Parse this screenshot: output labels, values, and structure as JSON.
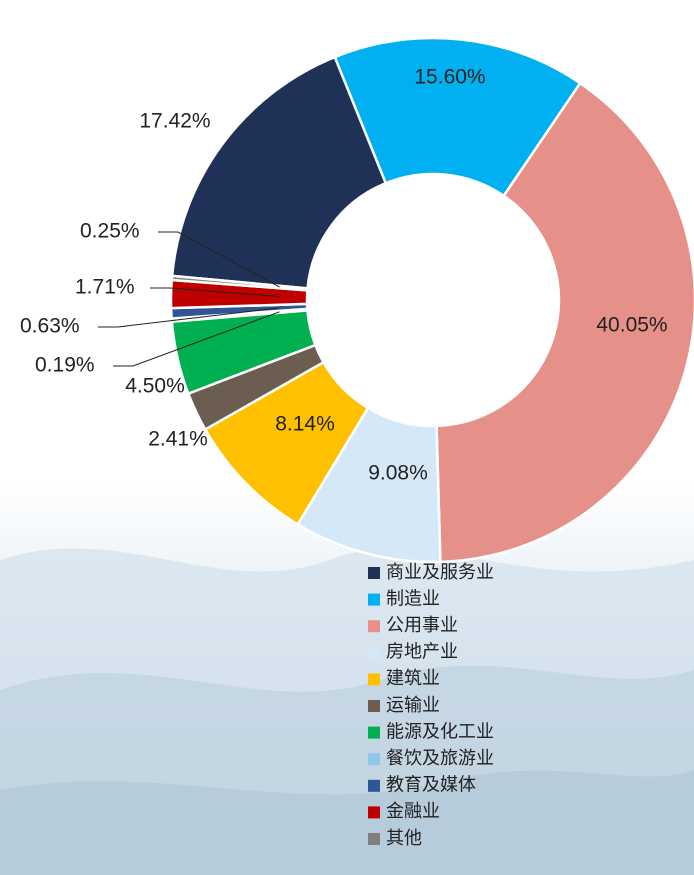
{
  "chart_data": {
    "type": "donut",
    "categories": [
      "商业及服务业",
      "制造业",
      "公用事业",
      "房地产业",
      "建筑业",
      "运输业",
      "能源及化工业",
      "餐饮及旅游业",
      "教育及媒体",
      "金融业",
      "其他"
    ],
    "values": [
      17.42,
      15.6,
      40.05,
      9.08,
      8.14,
      2.41,
      4.5,
      0.19,
      0.63,
      1.71,
      0.25
    ],
    "value_labels": [
      "17.42%",
      "15.60%",
      "40.05%",
      "9.08%",
      "8.14%",
      "2.41%",
      "4.50%",
      "0.19%",
      "0.63%",
      "1.71%",
      "0.25%"
    ],
    "colors": [
      "#1f3157",
      "#00b0f0",
      "#e6908a",
      "#d5e8f7",
      "#ffc000",
      "#6b5d50",
      "#00b050",
      "#8fc7e8",
      "#2f5597",
      "#c00000",
      "#7f7f7f"
    ],
    "legend": "bottom"
  }
}
